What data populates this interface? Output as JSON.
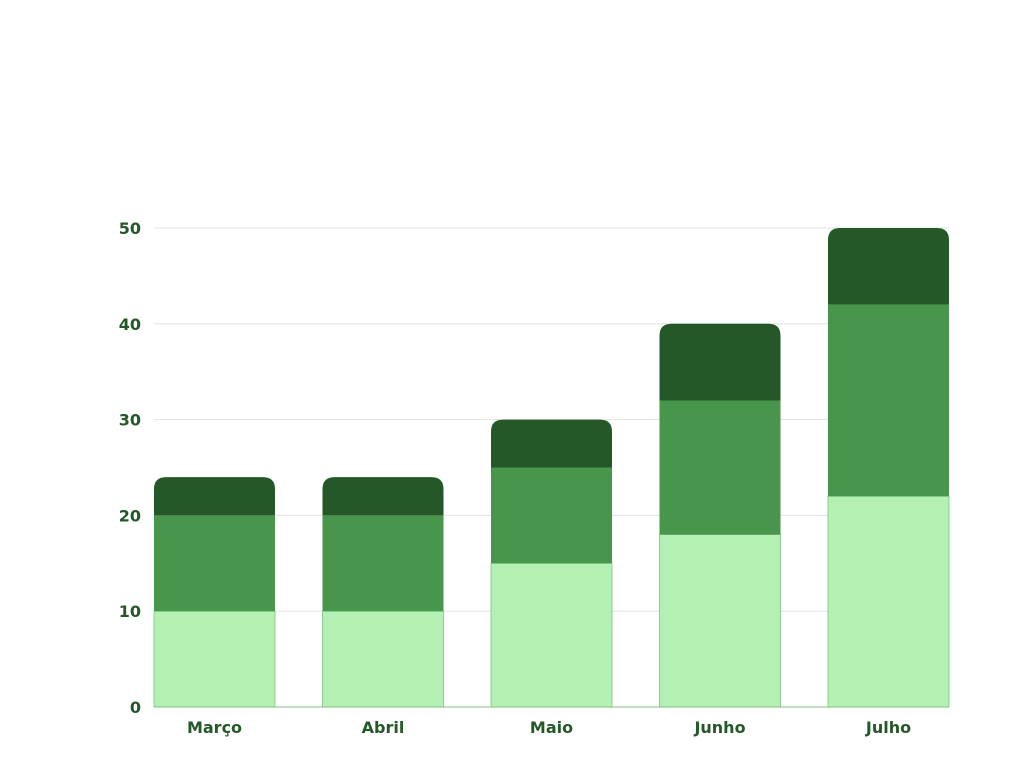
{
  "chart_data": {
    "type": "bar",
    "stacked": true,
    "categories": [
      "Março",
      "Abril",
      "Maio",
      "Junho",
      "Julho"
    ],
    "series": [
      {
        "values": [
          10,
          10,
          15,
          18,
          22
        ],
        "color": "#b4f0b4"
      },
      {
        "values": [
          10,
          10,
          10,
          14,
          20
        ],
        "color": "#48964b"
      },
      {
        "values": [
          4,
          4,
          5,
          8,
          8
        ],
        "color": "#245828"
      }
    ],
    "yticks": [
      0,
      10,
      20,
      30,
      40,
      50
    ],
    "ylim": [
      0,
      50
    ],
    "grid": true,
    "legend": "none",
    "title": "",
    "xlabel": "",
    "ylabel": "",
    "colors": {
      "label_text": "#245828",
      "gridline": "#e3e3e3",
      "axis_line": "#7fc27f",
      "bar_edge": "#7fc27f"
    }
  }
}
